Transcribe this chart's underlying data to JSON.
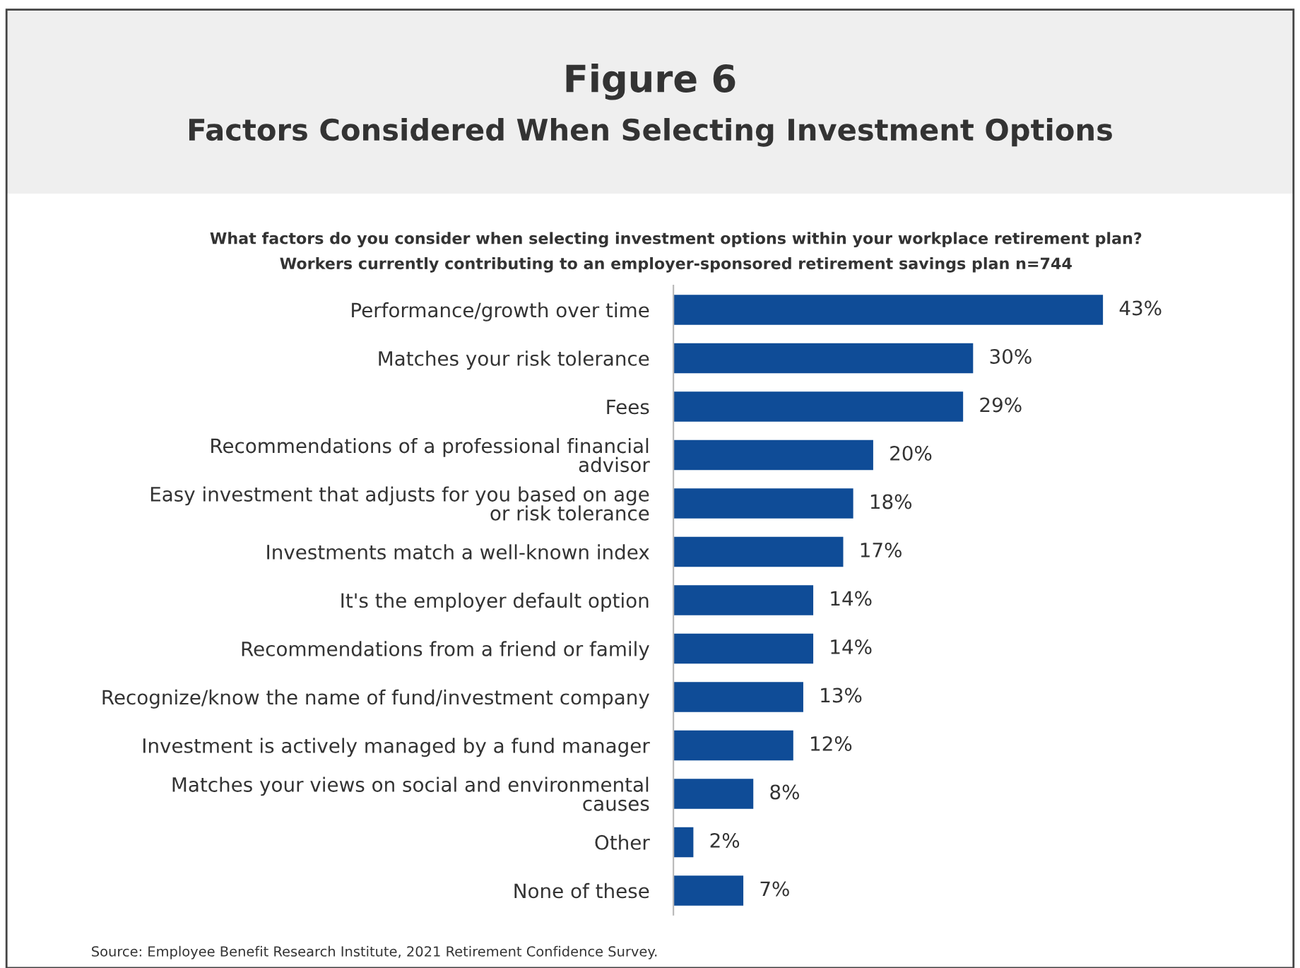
{
  "chart_data": {
    "type": "bar",
    "orientation": "horizontal",
    "title": "Figure 6",
    "subtitle": "Factors Considered When Selecting Investment Options",
    "annotations": [
      "What factors do you consider when selecting investment options within your workplace retirement plan?",
      "Workers currently contributing to an employer-sponsored retirement savings plan n=744",
      "Source: Employee Benefit Research Institute, 2021 Retirement Confidence Survey."
    ],
    "categories": [
      "Performance/growth over time",
      "Matches your risk tolerance",
      "Fees",
      "Recommendations of a professional financial advisor",
      "Easy investment that adjusts for you based on age or risk tolerance",
      "Investments match a well-known index",
      "It's the employer default option",
      "Recommendations from a friend or family",
      "Recognize/know the name of fund/investment company",
      "Investment is actively managed by a fund manager",
      "Matches your views on social and environmental causes",
      "Other",
      "None of these"
    ],
    "values": [
      43,
      30,
      29,
      20,
      18,
      17,
      14,
      14,
      13,
      12,
      8,
      2,
      7
    ],
    "value_labels": [
      "43%",
      "30%",
      "29%",
      "20%",
      "18%",
      "17%",
      "14%",
      "14%",
      "13%",
      "12%",
      "8%",
      "2%",
      "7%"
    ],
    "color": "#0f4c97",
    "grid": false,
    "legend": false
  }
}
